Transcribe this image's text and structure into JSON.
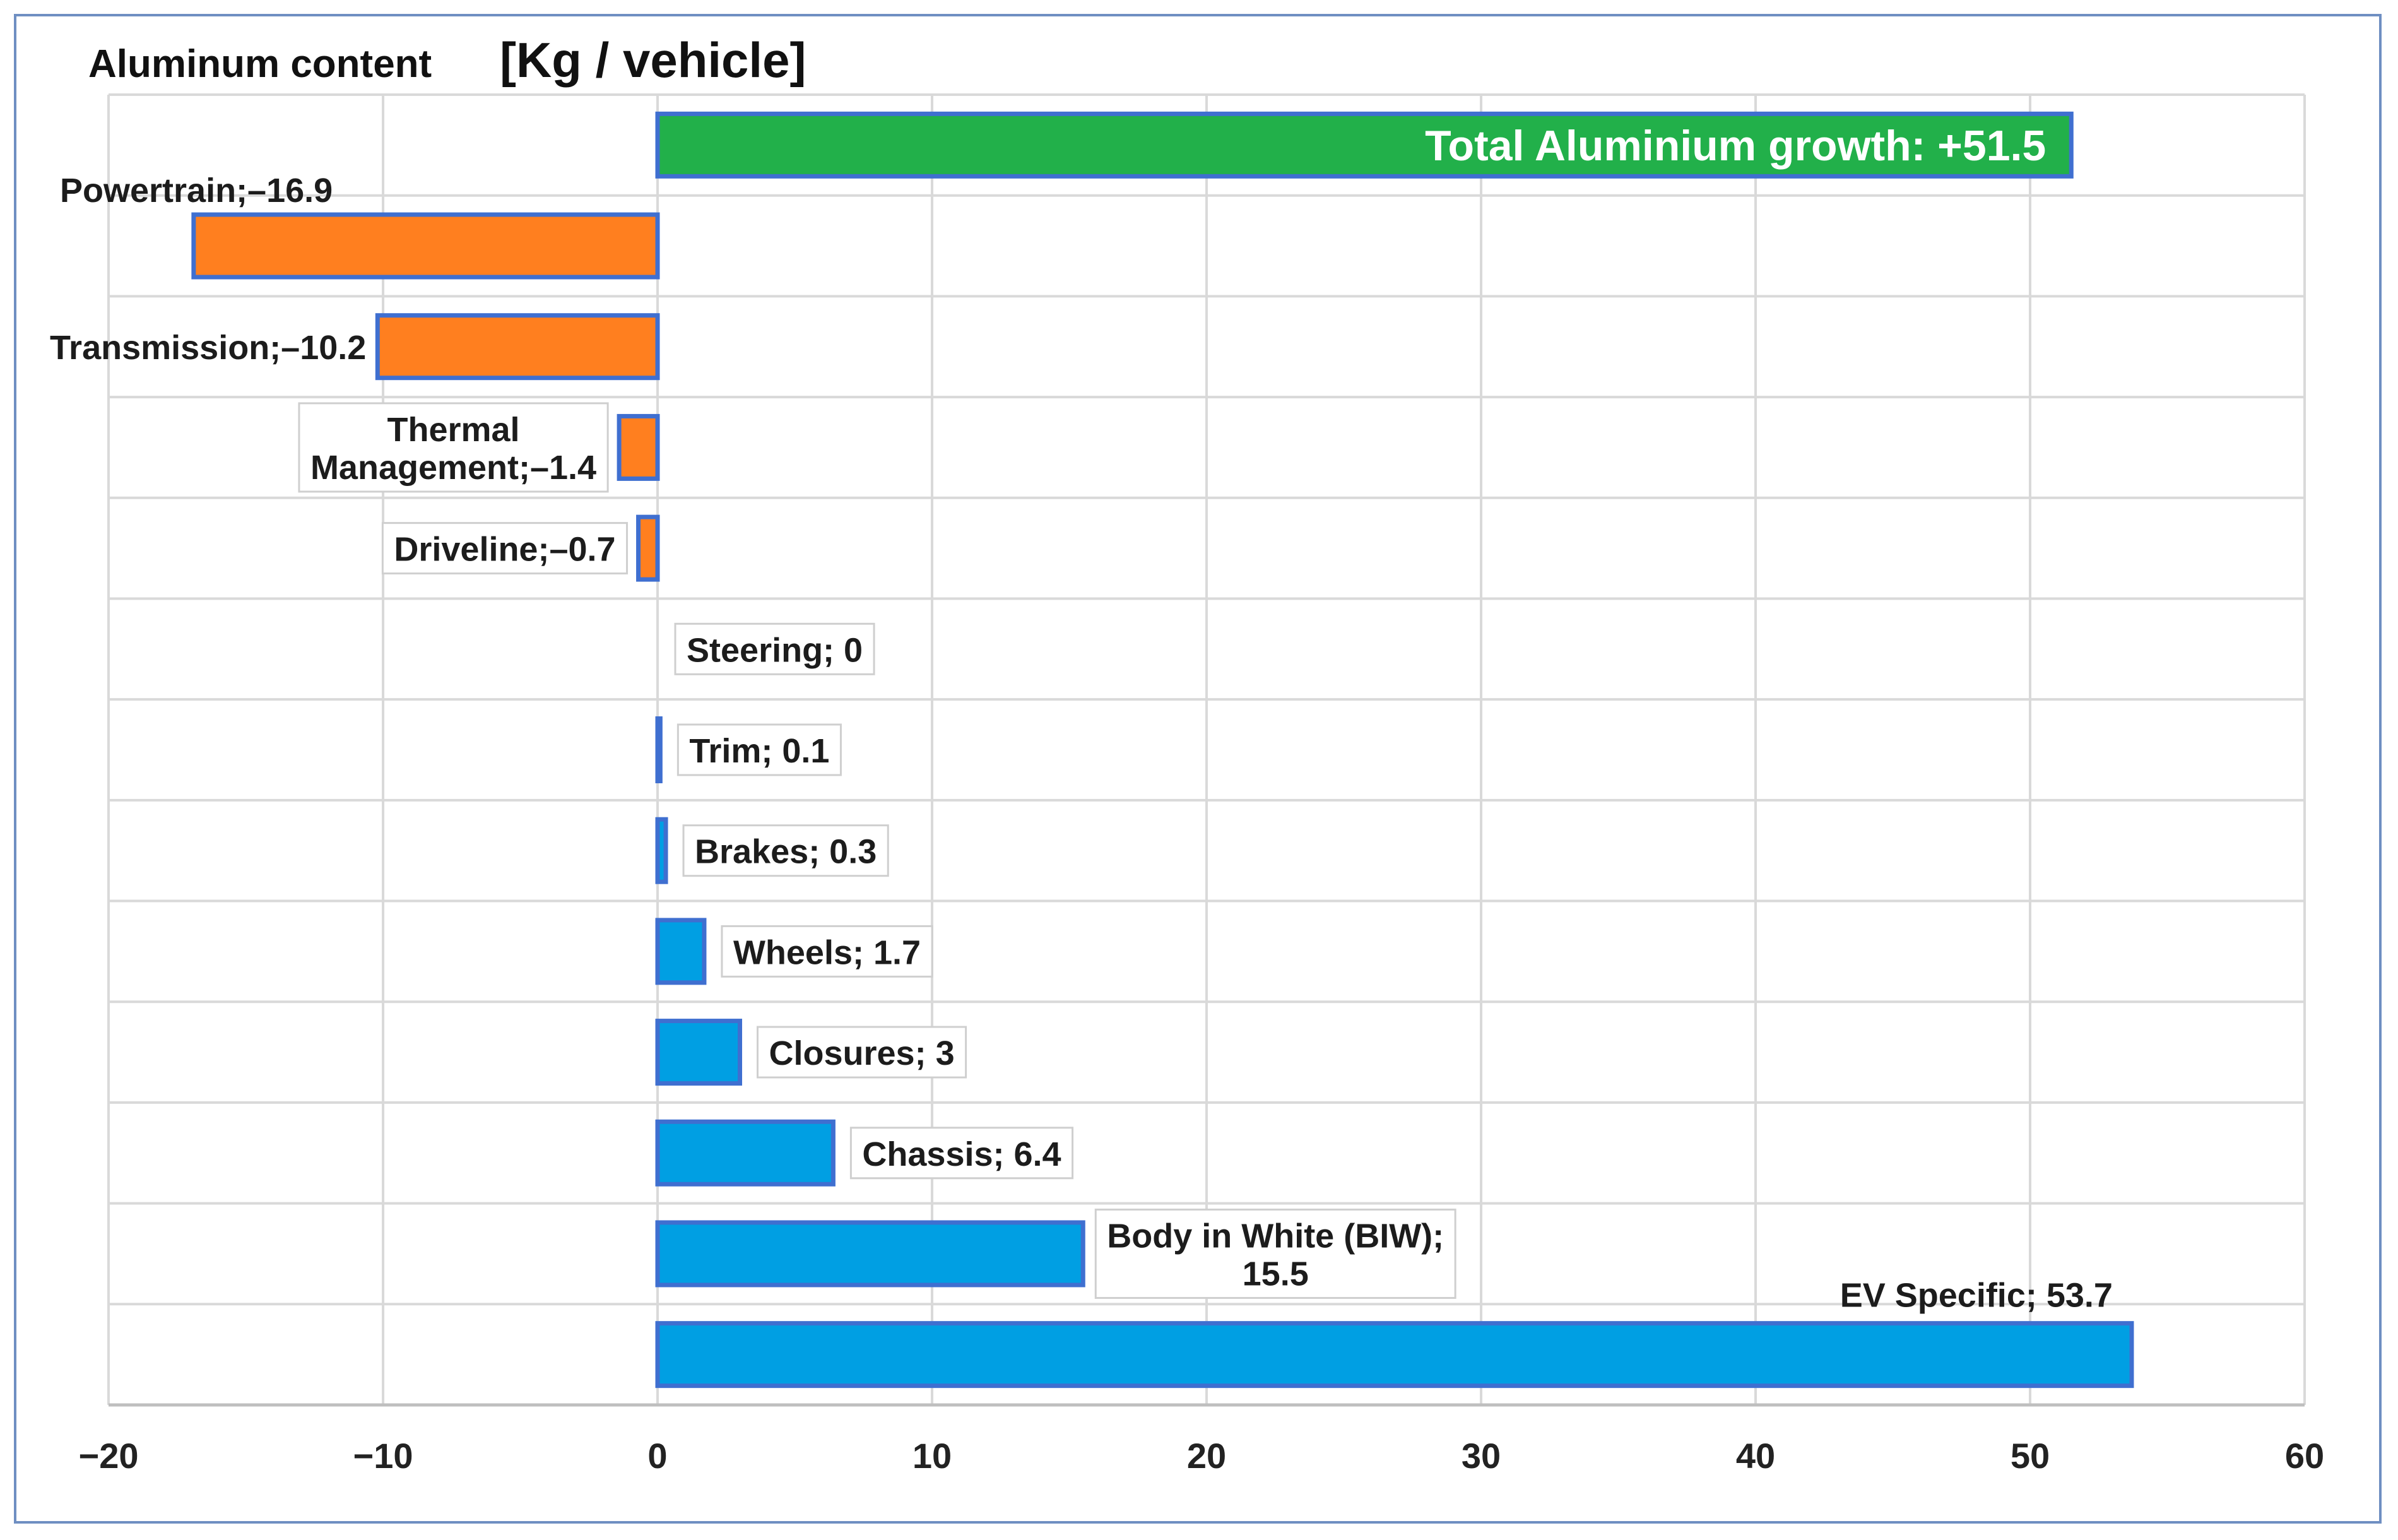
{
  "chart_data": {
    "type": "bar",
    "orientation": "horizontal",
    "title_main": "Aluminum content",
    "title_unit": "[Kg / vehicle]",
    "xlim": [
      -20,
      60
    ],
    "xticks": [
      -20,
      -10,
      0,
      10,
      20,
      30,
      40,
      50,
      60
    ],
    "xtick_labels": [
      "−20",
      "−10",
      "0",
      "10",
      "20",
      "30",
      "40",
      "50",
      "60"
    ],
    "grid": true,
    "categories": [
      "Total Aluminium growth",
      "Powertrain",
      "Transmission",
      "Thermal Management",
      "Driveline",
      "Steering",
      "Trim",
      "Brakes",
      "Wheels",
      "Closures",
      "Chassis",
      "Body in White (BIW)",
      "EV Specific"
    ],
    "values": [
      51.5,
      -16.9,
      -10.2,
      -1.4,
      -0.7,
      0,
      0.1,
      0.3,
      1.7,
      3,
      6.4,
      15.5,
      53.7
    ],
    "bar_labels": [
      [
        "Total Aluminium growth: +51.5"
      ],
      [
        "Powertrain;–16.9"
      ],
      [
        "Transmission;–10.2"
      ],
      [
        "Thermal",
        "Management;–1.4"
      ],
      [
        "Driveline;–0.7"
      ],
      [
        "Steering; 0"
      ],
      [
        "Trim; 0.1"
      ],
      [
        "Brakes; 0.3"
      ],
      [
        "Wheels; 1.7"
      ],
      [
        "Closures; 3"
      ],
      [
        "Chassis; 6.4"
      ],
      [
        "Body in White (BIW);",
        "15.5"
      ],
      [
        "EV Specific; 53.7"
      ]
    ],
    "colors": {
      "total": "#22b04a",
      "negative": "#ff7f1f",
      "positive": "#009fe3",
      "bar_border": "#3f6fd0",
      "grid": "#d9d9d9",
      "axis": "#bfbfbf",
      "label_border": "#cfcfcf"
    }
  }
}
